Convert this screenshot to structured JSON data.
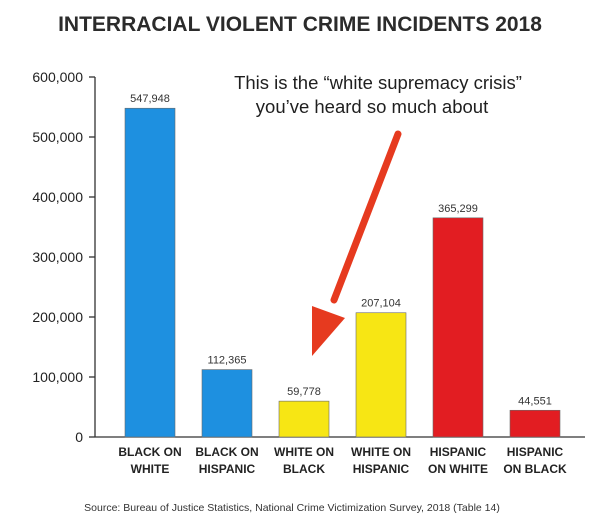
{
  "chart_data": {
    "type": "bar",
    "title": "INTERRACIAL VIOLENT CRIME INCIDENTS 2018",
    "xlabel": "",
    "ylabel": "",
    "ylim": [
      0,
      600000
    ],
    "yticks": [
      "0",
      "100,000",
      "200,000",
      "300,000",
      "400,000",
      "500,000",
      "600,000"
    ],
    "categories": [
      [
        "BLACK ON",
        "WHITE"
      ],
      [
        "BLACK ON",
        "HISPANIC"
      ],
      [
        "WHITE ON",
        "BLACK"
      ],
      [
        "WHITE ON",
        "HISPANIC"
      ],
      [
        "HISPANIC",
        "ON WHITE"
      ],
      [
        "HISPANIC",
        "ON BLACK"
      ]
    ],
    "values": [
      547948,
      112365,
      59778,
      207104,
      365299,
      44551
    ],
    "value_labels": [
      "547,948",
      "112,365",
      "59,778",
      "207,104",
      "365,299",
      "44,551"
    ],
    "colors": [
      "#1e90e0",
      "#1e90e0",
      "#f7e614",
      "#f7e614",
      "#e21d22",
      "#e21d22"
    ],
    "annotation": [
      "This is the “white supremacy crisis”",
      "you’ve heard so much about"
    ],
    "arrow_color": "#e63a1f",
    "source": "Source: Bureau of Justice Statistics, National Crime Victimization Survey, 2018 (Table 14)",
    "grid": false,
    "legend": "none"
  }
}
